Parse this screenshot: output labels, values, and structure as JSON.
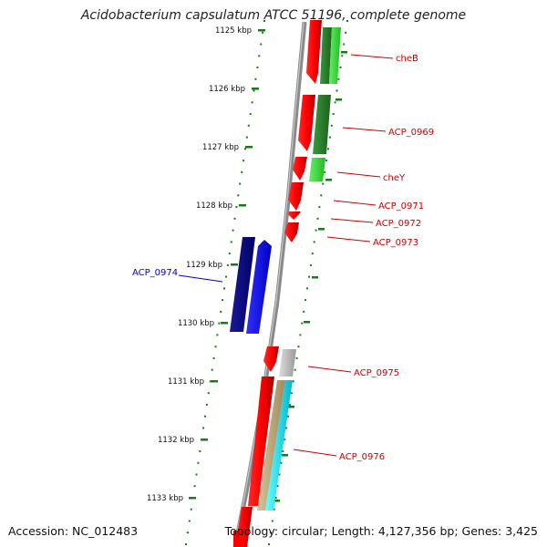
{
  "title": "Acidobacterium capsulatum ATCC 51196, complete genome",
  "footer": {
    "accession": "Accession: NC_012483",
    "stats": "Topology: circular; Length: 4,127,356 bp; Genes: 3,425"
  },
  "colors": {
    "backbone": "#8a8a8a",
    "tick": "#1a7a1a",
    "forward_gene": "#ff0000",
    "reverse_gene_dark": "#000080",
    "reverse_gene_light": "#0000ff",
    "label_red": "#cc0000",
    "label_blue": "#0000cc"
  },
  "ticks": [
    "1125 kbp",
    "1126 kbp",
    "1127 kbp",
    "1128 kbp",
    "1129 kbp",
    "1130 kbp",
    "1131 kbp",
    "1132 kbp",
    "1133 kbp"
  ],
  "gene_labels": [
    {
      "text": "cheB",
      "color": "#cc0000"
    },
    {
      "text": "ACP_0969",
      "color": "#cc0000"
    },
    {
      "text": "cheY",
      "color": "#cc0000"
    },
    {
      "text": "ACP_0971",
      "color": "#cc0000"
    },
    {
      "text": "ACP_0972",
      "color": "#cc0000"
    },
    {
      "text": "ACP_0973",
      "color": "#cc0000"
    },
    {
      "text": "ACP_0974",
      "color": "#0000cc"
    },
    {
      "text": "ACP_0975",
      "color": "#cc0000"
    },
    {
      "text": "ACP_0976",
      "color": "#cc0000"
    }
  ]
}
